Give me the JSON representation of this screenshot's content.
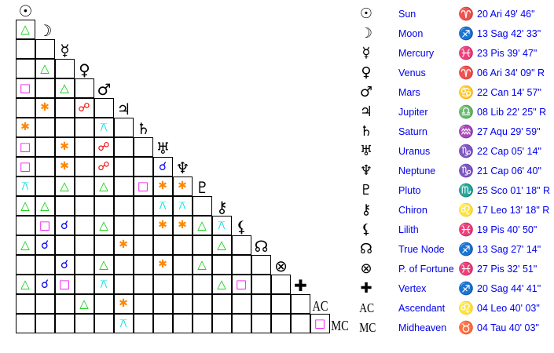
{
  "aspect_colors": {
    "T": "#00cc00",
    "S": "#ee00ee",
    "X": "#ff8800",
    "O": "#ee0000",
    "Q": "#00dddd",
    "C": "#0000ee"
  },
  "aspect_glyphs": {
    "T": "△",
    "S": "□",
    "X": "✱",
    "O": "☍",
    "Q": "⚻",
    "C": "☌"
  },
  "aspect_names": {
    "T": "trine",
    "S": "square",
    "X": "sextile",
    "O": "opposition",
    "Q": "quincunx",
    "C": "conjunction"
  },
  "planets": [
    {
      "glyph": "☉",
      "name": "Sun",
      "sign_glyph": "♈",
      "position": "20 Ari 49' 46\""
    },
    {
      "glyph": "☽",
      "name": "Moon",
      "sign_glyph": "♐",
      "position": "13 Sag 42' 33\""
    },
    {
      "glyph": "☿",
      "name": "Mercury",
      "sign_glyph": "♓",
      "position": "23 Pis 39' 47\""
    },
    {
      "glyph": "♀",
      "name": "Venus",
      "sign_glyph": "♈",
      "position": "06 Ari 34' 09\" R"
    },
    {
      "glyph": "♂",
      "name": "Mars",
      "sign_glyph": "♋",
      "position": "22 Can 14' 57\""
    },
    {
      "glyph": "♃",
      "name": "Jupiter",
      "sign_glyph": "♎",
      "position": "08 Lib 22' 25\" R"
    },
    {
      "glyph": "♄",
      "name": "Saturn",
      "sign_glyph": "♒",
      "position": "27 Aqu 29' 59\""
    },
    {
      "glyph": "♅",
      "name": "Uranus",
      "sign_glyph": "♑",
      "position": "22 Cap 05' 14\""
    },
    {
      "glyph": "♆",
      "name": "Neptune",
      "sign_glyph": "♑",
      "position": "21 Cap 06' 40\""
    },
    {
      "glyph": "♇",
      "name": "Pluto",
      "sign_glyph": "♏",
      "position": "25 Sco 01' 18\" R"
    },
    {
      "glyph": "⚷",
      "name": "Chiron",
      "sign_glyph": "♌",
      "position": "17 Leo 13' 18\" R"
    },
    {
      "glyph": "⚸",
      "name": "Lilith",
      "sign_glyph": "♓",
      "position": "19 Pis 40' 50\""
    },
    {
      "glyph": "☊",
      "name": "True Node",
      "sign_glyph": "♐",
      "position": "13 Sag 27' 14\""
    },
    {
      "glyph": "⊗",
      "name": "P. of Fortune",
      "sign_glyph": "♓",
      "position": "27 Pis 32' 51\""
    },
    {
      "glyph": "✚",
      "name": "Vertex",
      "sign_glyph": "♐",
      "position": "20 Sag 44' 41\""
    },
    {
      "glyph": "AC",
      "name": "Ascendant",
      "sign_glyph": "♌",
      "position": "04 Leo 40' 03\""
    },
    {
      "glyph": "MC",
      "name": "Midheaven",
      "sign_glyph": "♉",
      "position": "04 Tau 40' 03\""
    }
  ],
  "aspect_grid": [
    [
      "T"
    ],
    [
      "",
      ""
    ],
    [
      "",
      "T",
      ""
    ],
    [
      "S",
      "",
      "T",
      ""
    ],
    [
      "",
      "X",
      "",
      "O",
      ""
    ],
    [
      "X",
      "",
      "",
      "",
      "Q",
      ""
    ],
    [
      "S",
      "",
      "X",
      "",
      "O",
      "",
      ""
    ],
    [
      "S",
      "",
      "X",
      "",
      "O",
      "",
      "",
      "C"
    ],
    [
      "Q",
      "",
      "T",
      "",
      "T",
      "",
      "S",
      "X",
      "X"
    ],
    [
      "T",
      "T",
      "",
      "",
      "",
      "",
      "",
      "Q",
      "Q",
      ""
    ],
    [
      "",
      "S",
      "C",
      "",
      "T",
      "",
      "",
      "X",
      "X",
      "T",
      "Q"
    ],
    [
      "T",
      "C",
      "",
      "",
      "",
      "X",
      "",
      "",
      "",
      "",
      "T",
      ""
    ],
    [
      "",
      "",
      "C",
      "",
      "T",
      "",
      "",
      "X",
      "",
      "T",
      "",
      "",
      ""
    ],
    [
      "T",
      "C",
      "S",
      "",
      "Q",
      "",
      "",
      "",
      "",
      "",
      "T",
      "S",
      "",
      ""
    ],
    [
      "",
      "",
      "",
      "T",
      "",
      "X",
      "",
      "",
      "",
      "",
      "",
      "",
      "",
      "",
      ""
    ],
    [
      "",
      "",
      "",
      "",
      "",
      "Q",
      "",
      "",
      "",
      "",
      "",
      "",
      "",
      "",
      "",
      "S"
    ]
  ]
}
